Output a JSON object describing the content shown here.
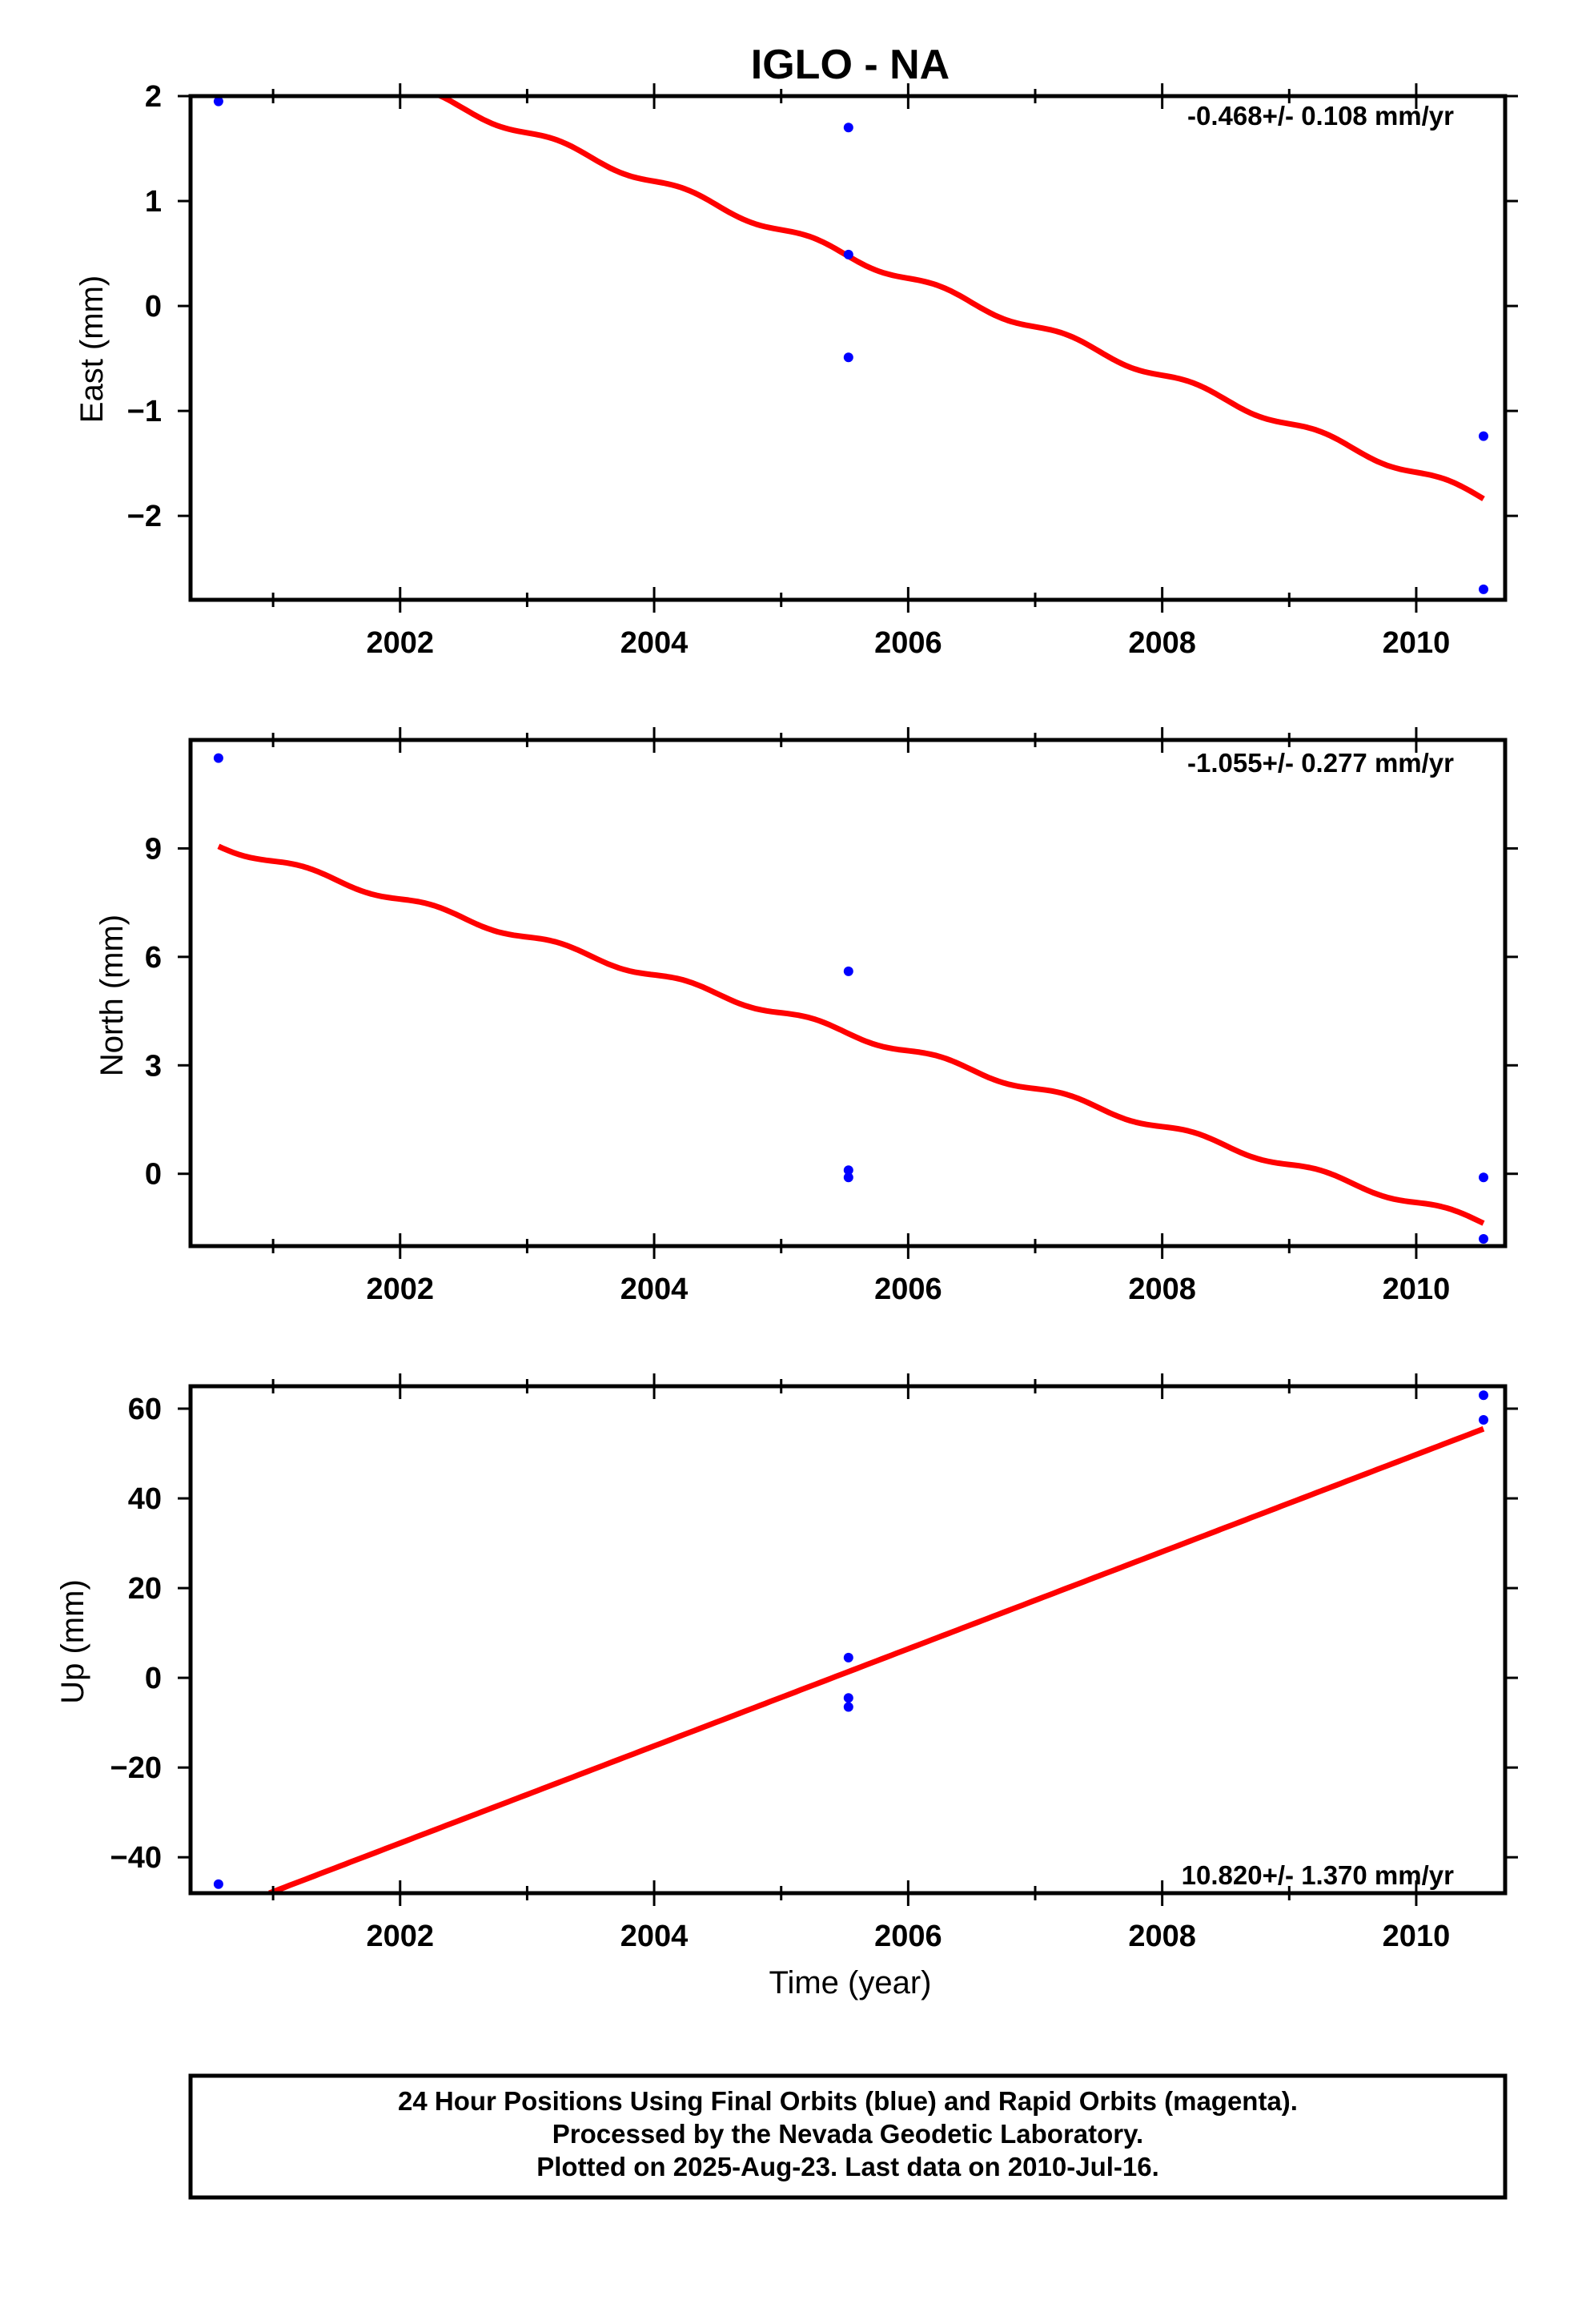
{
  "chart_data": [
    {
      "type": "scatter",
      "title": "IGLO - NA",
      "ylabel": "East (mm)",
      "xlabel": "",
      "xlim": [
        2000.35,
        2010.7
      ],
      "ylim": [
        -2.8,
        2.0
      ],
      "xticks": [
        2002,
        2004,
        2006,
        2008,
        2010
      ],
      "yticks": [
        2,
        1,
        0,
        -1,
        -2
      ],
      "ytick_labels": [
        "2",
        "1",
        "0",
        "−1",
        "−2"
      ],
      "rate_label": "-0.468+/- 0.108 mm/yr",
      "rate_position": "top-right",
      "grid": false,
      "series": [
        {
          "color": "#0000ff",
          "x": [
            2000.57,
            2005.53,
            2005.53,
            2005.53,
            2010.53,
            2010.53
          ],
          "y": [
            1.95,
            1.7,
            0.49,
            -0.49,
            -1.24,
            -2.7
          ]
        }
      ],
      "trend": {
        "color": "#ff0000",
        "x": [
          2002.2,
          2010.53
        ],
        "y": [
          2.02,
          -1.83
        ],
        "seasonal_amp": 0.04
      }
    },
    {
      "type": "scatter",
      "title": "",
      "ylabel": "North (mm)",
      "xlabel": "",
      "xlim": [
        2000.35,
        2010.7
      ],
      "ylim": [
        -2.0,
        12.0
      ],
      "xticks": [
        2002,
        2004,
        2006,
        2008,
        2010
      ],
      "yticks": [
        9,
        6,
        3,
        0
      ],
      "ytick_labels": [
        "9",
        "6",
        "3",
        "0"
      ],
      "rate_label": "-1.055+/- 0.277 mm/yr",
      "rate_position": "top-right",
      "grid": false,
      "series": [
        {
          "color": "#0000ff",
          "x": [
            2000.57,
            2005.53,
            2005.53,
            2005.53,
            2010.53,
            2010.53
          ],
          "y": [
            11.5,
            5.6,
            0.1,
            -0.1,
            -0.1,
            -1.8
          ]
        }
      ],
      "trend": {
        "color": "#ff0000",
        "x": [
          2000.57,
          2010.53
        ],
        "y": [
          9.1,
          -1.35
        ],
        "seasonal_amp": 0.1
      }
    },
    {
      "type": "scatter",
      "title": "",
      "ylabel": "Up (mm)",
      "xlabel": "Time (year)",
      "xlim": [
        2000.35,
        2010.7
      ],
      "ylim": [
        -48,
        65
      ],
      "xticks": [
        2002,
        2004,
        2006,
        2008,
        2010
      ],
      "yticks": [
        60,
        40,
        20,
        0,
        -20,
        -40
      ],
      "ytick_labels": [
        "60",
        "40",
        "20",
        "0",
        "−20",
        "−40"
      ],
      "rate_label": "10.820+/- 1.370 mm/yr",
      "rate_position": "bottom-right",
      "grid": false,
      "series": [
        {
          "color": "#0000ff",
          "x": [
            2000.57,
            2005.53,
            2005.53,
            2005.53,
            2010.53,
            2010.53
          ],
          "y": [
            -46,
            4.5,
            -4.5,
            -6.5,
            63,
            57.5
          ]
        }
      ],
      "trend": {
        "color": "#ff0000",
        "x": [
          2000.97,
          2010.53
        ],
        "y": [
          -48,
          55.5
        ],
        "seasonal_amp": 0
      }
    }
  ],
  "footer": {
    "line1": "24 Hour Positions Using Final Orbits (blue) and Rapid Orbits (magenta).",
    "line2": "Processed by the Nevada Geodetic Laboratory.",
    "line3": "Plotted on 2025-Aug-23. Last data on 2010-Jul-16."
  }
}
